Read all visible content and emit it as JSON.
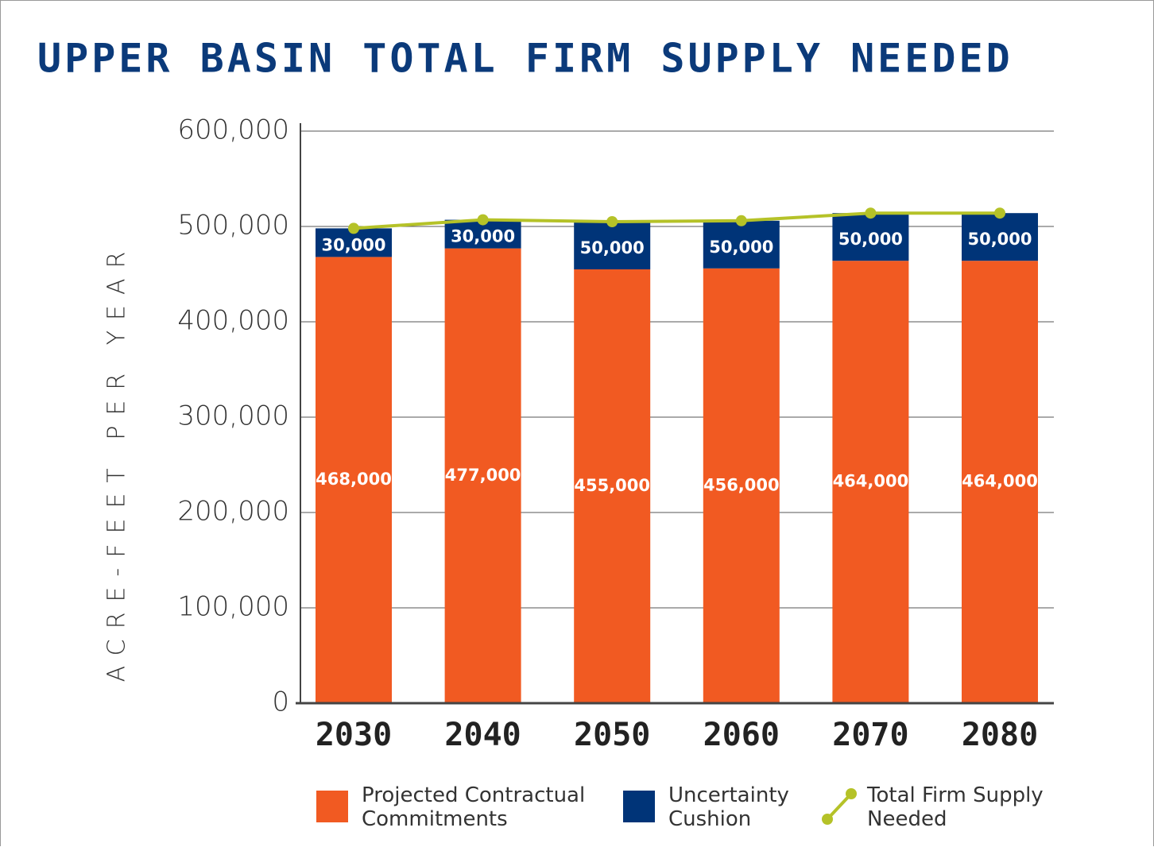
{
  "chart_data": {
    "type": "bar",
    "title": "UPPER BASIN TOTAL FIRM SUPPLY NEEDED",
    "y_label": "ACRE-FEET PER YEAR",
    "categories": [
      "2030",
      "2040",
      "2050",
      "2060",
      "2070",
      "2080"
    ],
    "stacked": true,
    "series": [
      {
        "name": "Projected Contractual Commitments",
        "color": "#f15a22",
        "values": [
          468000,
          477000,
          455000,
          456000,
          464000,
          464000
        ],
        "value_labels": [
          "468,000",
          "477,000",
          "455,000",
          "456,000",
          "464,000",
          "464,000"
        ]
      },
      {
        "name": "Uncertainty Cushion",
        "color": "#003478",
        "values": [
          30000,
          30000,
          50000,
          50000,
          50000,
          50000
        ],
        "value_labels": [
          "30,000",
          "30,000",
          "50,000",
          "50,000",
          "50,000",
          "50,000"
        ]
      },
      {
        "name": "Total Firm Supply Needed",
        "color": "#b5c228",
        "type": "line",
        "values": [
          498000,
          507000,
          505000,
          506000,
          514000,
          514000
        ]
      }
    ],
    "ylim": [
      0,
      600000
    ],
    "yticks": [
      0,
      {
        "value": 100000,
        "label": "100,000"
      },
      {
        "value": 200000,
        "label": "200,000"
      },
      {
        "value": 300000,
        "label": "300,000"
      },
      {
        "value": 400000,
        "label": "400,000"
      },
      {
        "value": 500000,
        "label": "500,000"
      },
      {
        "value": 600000,
        "label": "600,000"
      }
    ],
    "grid": true,
    "legend": "bottom"
  }
}
